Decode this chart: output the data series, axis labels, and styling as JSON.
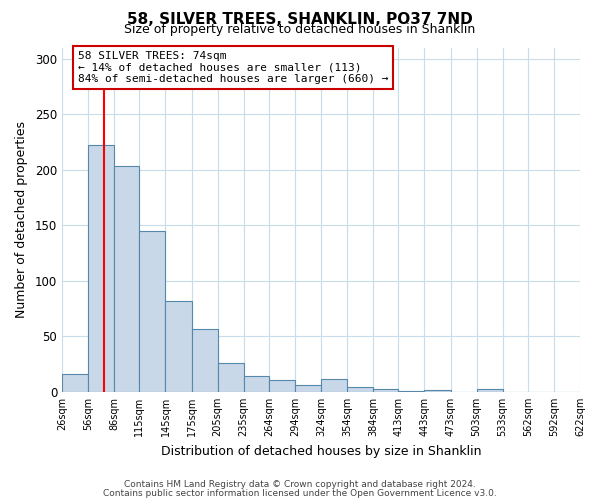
{
  "title": "58, SILVER TREES, SHANKLIN, PO37 7ND",
  "subtitle": "Size of property relative to detached houses in Shanklin",
  "xlabel": "Distribution of detached houses by size in Shanklin",
  "ylabel": "Number of detached properties",
  "bar_values": [
    16,
    222,
    203,
    145,
    82,
    57,
    26,
    14,
    11,
    6,
    12,
    4,
    3,
    1,
    2,
    0,
    3,
    0,
    0,
    0,
    2
  ],
  "bar_color": "#c8d8e8",
  "bar_edgecolor": "#5588aa",
  "bar_linewidth": 0.8,
  "red_line_x": 74,
  "ylim": [
    0,
    310
  ],
  "yticks": [
    0,
    50,
    100,
    150,
    200,
    250,
    300
  ],
  "annotation_title": "58 SILVER TREES: 74sqm",
  "annotation_line1": "← 14% of detached houses are smaller (113)",
  "annotation_line2": "84% of semi-detached houses are larger (660) →",
  "annotation_box_facecolor": "#ffffff",
  "annotation_box_edgecolor": "#cc0000",
  "footer_line1": "Contains HM Land Registry data © Crown copyright and database right 2024.",
  "footer_line2": "Contains public sector information licensed under the Open Government Licence v3.0.",
  "background_color": "#ffffff",
  "grid_color": "#c8dcea",
  "bin_edges": [
    26,
    56,
    86,
    115,
    145,
    175,
    205,
    235,
    264,
    294,
    324,
    354,
    384,
    413,
    443,
    473,
    503,
    533,
    562,
    592,
    622
  ],
  "tick_labels": [
    "26sqm",
    "56sqm",
    "86sqm",
    "115sqm",
    "145sqm",
    "175sqm",
    "205sqm",
    "235sqm",
    "264sqm",
    "294sqm",
    "324sqm",
    "354sqm",
    "384sqm",
    "413sqm",
    "443sqm",
    "473sqm",
    "503sqm",
    "533sqm",
    "562sqm",
    "592sqm",
    "622sqm"
  ]
}
